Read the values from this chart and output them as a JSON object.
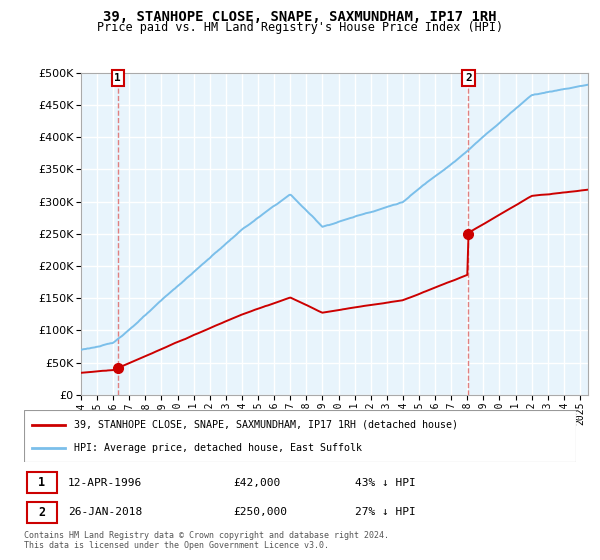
{
  "title": "39, STANHOPE CLOSE, SNAPE, SAXMUNDHAM, IP17 1RH",
  "subtitle": "Price paid vs. HM Land Registry's House Price Index (HPI)",
  "sale1_year": 1996.29,
  "sale1_price": 42000,
  "sale2_year": 2018.07,
  "sale2_price": 250000,
  "hpi_color": "#7bbfea",
  "price_color": "#cc0000",
  "dashed_color": "#e08080",
  "legend_label1": "39, STANHOPE CLOSE, SNAPE, SAXMUNDHAM, IP17 1RH (detached house)",
  "legend_label2": "HPI: Average price, detached house, East Suffolk",
  "ylim": [
    0,
    500000
  ],
  "xlim_start": 1994.0,
  "xlim_end": 2025.5,
  "bg_color": "#e8f4fc",
  "grid_color": "#ffffff"
}
